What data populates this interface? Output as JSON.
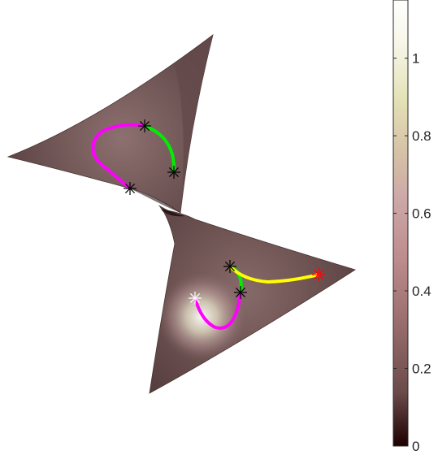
{
  "chart_data": {
    "type": "heatmap",
    "title": "",
    "xlabel": "",
    "ylabel": "",
    "colormap": "pink",
    "colorbar": {
      "clim": [
        0,
        1.15
      ],
      "ticks": [
        0,
        0.2,
        0.4,
        0.6,
        0.8,
        1
      ],
      "tick_labels": [
        "0",
        "0.2",
        "0.4",
        "0.6",
        "0.8",
        "1"
      ],
      "colors": [
        "#1e0000",
        "#6b4a4a",
        "#9b6e6e",
        "#bd8c8c",
        "#cca7a7",
        "#d6c2a6",
        "#e4e2b8",
        "#f6f6e8",
        "#ffffff"
      ]
    },
    "surface_patches": [
      {
        "name": "upper",
        "fill": "#7a5d5d"
      },
      {
        "name": "lower",
        "fill": "#6e5252"
      }
    ],
    "curves": [
      {
        "name": "upper-magenta",
        "color": "#ff00ff"
      },
      {
        "name": "upper-green",
        "color": "#00ee00"
      },
      {
        "name": "lower-magenta",
        "color": "#ff00ff"
      },
      {
        "name": "lower-green",
        "color": "#00ee00"
      },
      {
        "name": "lower-yellow",
        "color": "#ffff00"
      }
    ],
    "markers": [
      {
        "name": "marker-upper-1",
        "color": "#000000"
      },
      {
        "name": "marker-upper-2",
        "color": "#000000"
      },
      {
        "name": "marker-upper-3",
        "color": "#000000"
      },
      {
        "name": "marker-lower-1",
        "color": "#000000"
      },
      {
        "name": "marker-lower-2",
        "color": "#000000"
      },
      {
        "name": "marker-lower-3",
        "color": "#ff0000"
      },
      {
        "name": "marker-lower-4",
        "color": "#ffffff"
      }
    ]
  }
}
